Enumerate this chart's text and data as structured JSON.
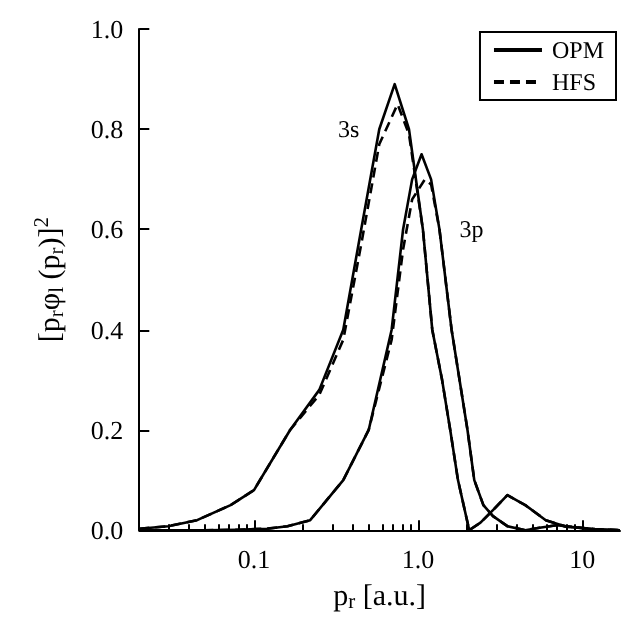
{
  "chart_data": {
    "type": "line",
    "xlabel": "p$_{r}$ [a.u.]",
    "ylabel": "[p$_{r}$φ$_{l}$ (p$_{r}$)]$^{2}$",
    "log": "x",
    "xlim": [
      0.02,
      17
    ],
    "xticks": [
      0.1,
      {
        "value": 1,
        "label": "1.0"
      },
      10
    ],
    "ylim": [
      0,
      1
    ],
    "yticks": [
      {
        "value": 0,
        "label": "0.0"
      },
      0.2,
      0.4,
      0.6,
      0.8,
      {
        "value": 1,
        "label": "1.0"
      }
    ],
    "grid": false,
    "legend": "top right",
    "marker": "none",
    "annotations": [
      {
        "text": "3s",
        "x": 0.58,
        "y": 0.8
      },
      {
        "text": "3p",
        "x": 1.35,
        "y": 0.6
      }
    ],
    "series": [
      {
        "name": "OPM",
        "color": "#000000",
        "line_style": "solid",
        "x": [
          0.02,
          0.03,
          0.045,
          0.072,
          0.1,
          0.166,
          0.25,
          0.35,
          0.45,
          0.58,
          0.72,
          0.88,
          1.07,
          1.22,
          1.4,
          1.57,
          1.75,
          2.05,
          2.4,
          2.86,
          3.5,
          4.5,
          6,
          8,
          12,
          17
        ],
        "values": [
          0.003,
          0.008,
          0.02,
          0.05,
          0.08,
          0.2,
          0.28,
          0.4,
          0.6,
          0.8,
          0.89,
          0.8,
          0.6,
          0.4,
          0.3,
          0.2,
          0.1,
          0,
          0.015,
          0.04,
          0.07,
          0.05,
          0.02,
          0.007,
          0.002,
          0
        ]
      },
      {
        "name": "HFS",
        "color": "#000000",
        "line_style": "dashed",
        "x": [
          0.02,
          0.03,
          0.045,
          0.072,
          0.1,
          0.166,
          0.25,
          0.35,
          0.45,
          0.58,
          0.75,
          0.88,
          1.07,
          1.22,
          1.4,
          1.57,
          1.75,
          2.05,
          2.4,
          2.86,
          3.5,
          4.5,
          6,
          8,
          12,
          17
        ],
        "values": [
          0.003,
          0.008,
          0.02,
          0.05,
          0.08,
          0.2,
          0.27,
          0.38,
          0.57,
          0.77,
          0.85,
          0.79,
          0.6,
          0.4,
          0.3,
          0.2,
          0.1,
          0,
          0.015,
          0.04,
          0.07,
          0.05,
          0.02,
          0.007,
          0.002,
          0
        ]
      },
      {
        "color": "#000000",
        "line_style": "solid",
        "x": [
          0.02,
          0.05,
          0.08,
          0.12,
          0.16,
          0.22,
          0.35,
          0.5,
          0.69,
          0.81,
          0.92,
          1.05,
          1.2,
          1.35,
          1.6,
          2.0,
          2.2,
          2.5,
          2.86,
          3.5,
          4.5,
          5.5,
          7,
          9,
          12,
          17
        ],
        "values": [
          0,
          0,
          0.001,
          0.003,
          0.008,
          0.02,
          0.1,
          0.2,
          0.4,
          0.6,
          0.7,
          0.75,
          0.7,
          0.6,
          0.4,
          0.2,
          0.1,
          0.05,
          0.028,
          0.008,
          0,
          0.005,
          0.01,
          0.006,
          0.002,
          0
        ]
      },
      {
        "color": "#000000",
        "line_style": "dashed",
        "x": [
          0.02,
          0.05,
          0.08,
          0.12,
          0.16,
          0.22,
          0.35,
          0.5,
          0.69,
          0.81,
          0.92,
          1.1,
          1.2,
          1.35,
          1.6,
          2.0,
          2.2,
          2.5,
          2.86,
          3.5,
          4.5,
          5.5,
          7,
          9,
          12,
          17
        ],
        "values": [
          0,
          0,
          0.001,
          0.003,
          0.008,
          0.02,
          0.1,
          0.2,
          0.38,
          0.56,
          0.66,
          0.7,
          0.69,
          0.6,
          0.4,
          0.2,
          0.1,
          0.05,
          0.028,
          0.008,
          0,
          0.005,
          0.01,
          0.006,
          0.002,
          0
        ]
      }
    ]
  }
}
